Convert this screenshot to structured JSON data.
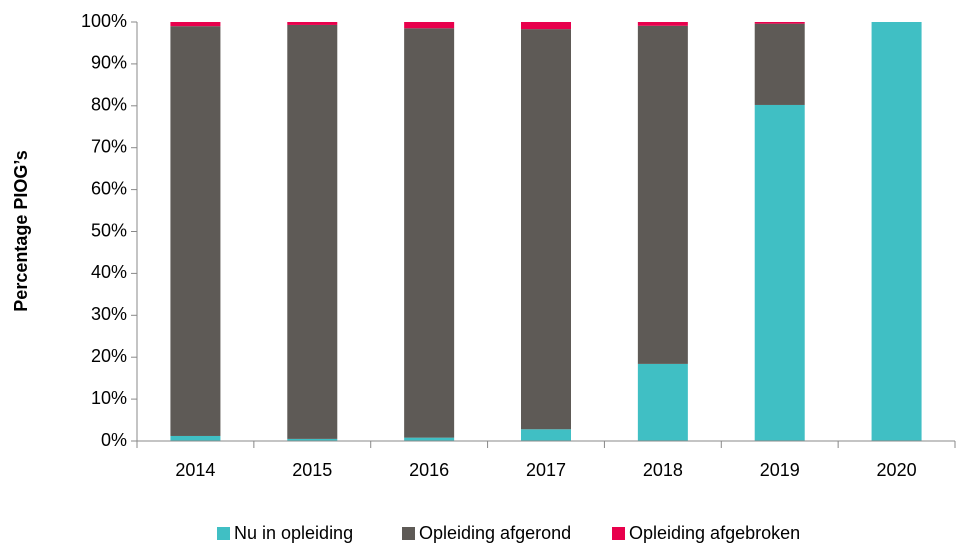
{
  "chart_data": {
    "type": "stacked_bar",
    "y_label": "Percentage PIOG’s",
    "categories": [
      "2014",
      "2015",
      "2016",
      "2017",
      "2018",
      "2019",
      "2020"
    ],
    "series": [
      {
        "name": "Nu in opleiding",
        "color": "#40bfc4",
        "values": [
          1.2,
          0.5,
          0.8,
          2.8,
          18.4,
          80.2,
          100
        ]
      },
      {
        "name": "Opleiding afgerond",
        "color": "#5e5a56",
        "values": [
          97.8,
          98.8,
          97.7,
          95.5,
          80.7,
          19.4,
          0
        ]
      },
      {
        "name": "Opleiding afgebroken",
        "color": "#e8004c",
        "values": [
          1.0,
          0.7,
          1.5,
          1.7,
          0.9,
          0.4,
          0
        ]
      }
    ],
    "ylim": [
      0,
      100
    ],
    "yticks": [
      {
        "value": 0,
        "label": "0%"
      },
      {
        "value": 10,
        "label": "10%"
      },
      {
        "value": 20,
        "label": "20%"
      },
      {
        "value": 30,
        "label": "30%"
      },
      {
        "value": 40,
        "label": "40%"
      },
      {
        "value": 50,
        "label": "50%"
      },
      {
        "value": 60,
        "label": "60%"
      },
      {
        "value": 70,
        "label": "70%"
      },
      {
        "value": 80,
        "label": "80%"
      },
      {
        "value": 90,
        "label": "90%"
      },
      {
        "value": 100,
        "label": "100%"
      }
    ],
    "legend": "bottom"
  }
}
